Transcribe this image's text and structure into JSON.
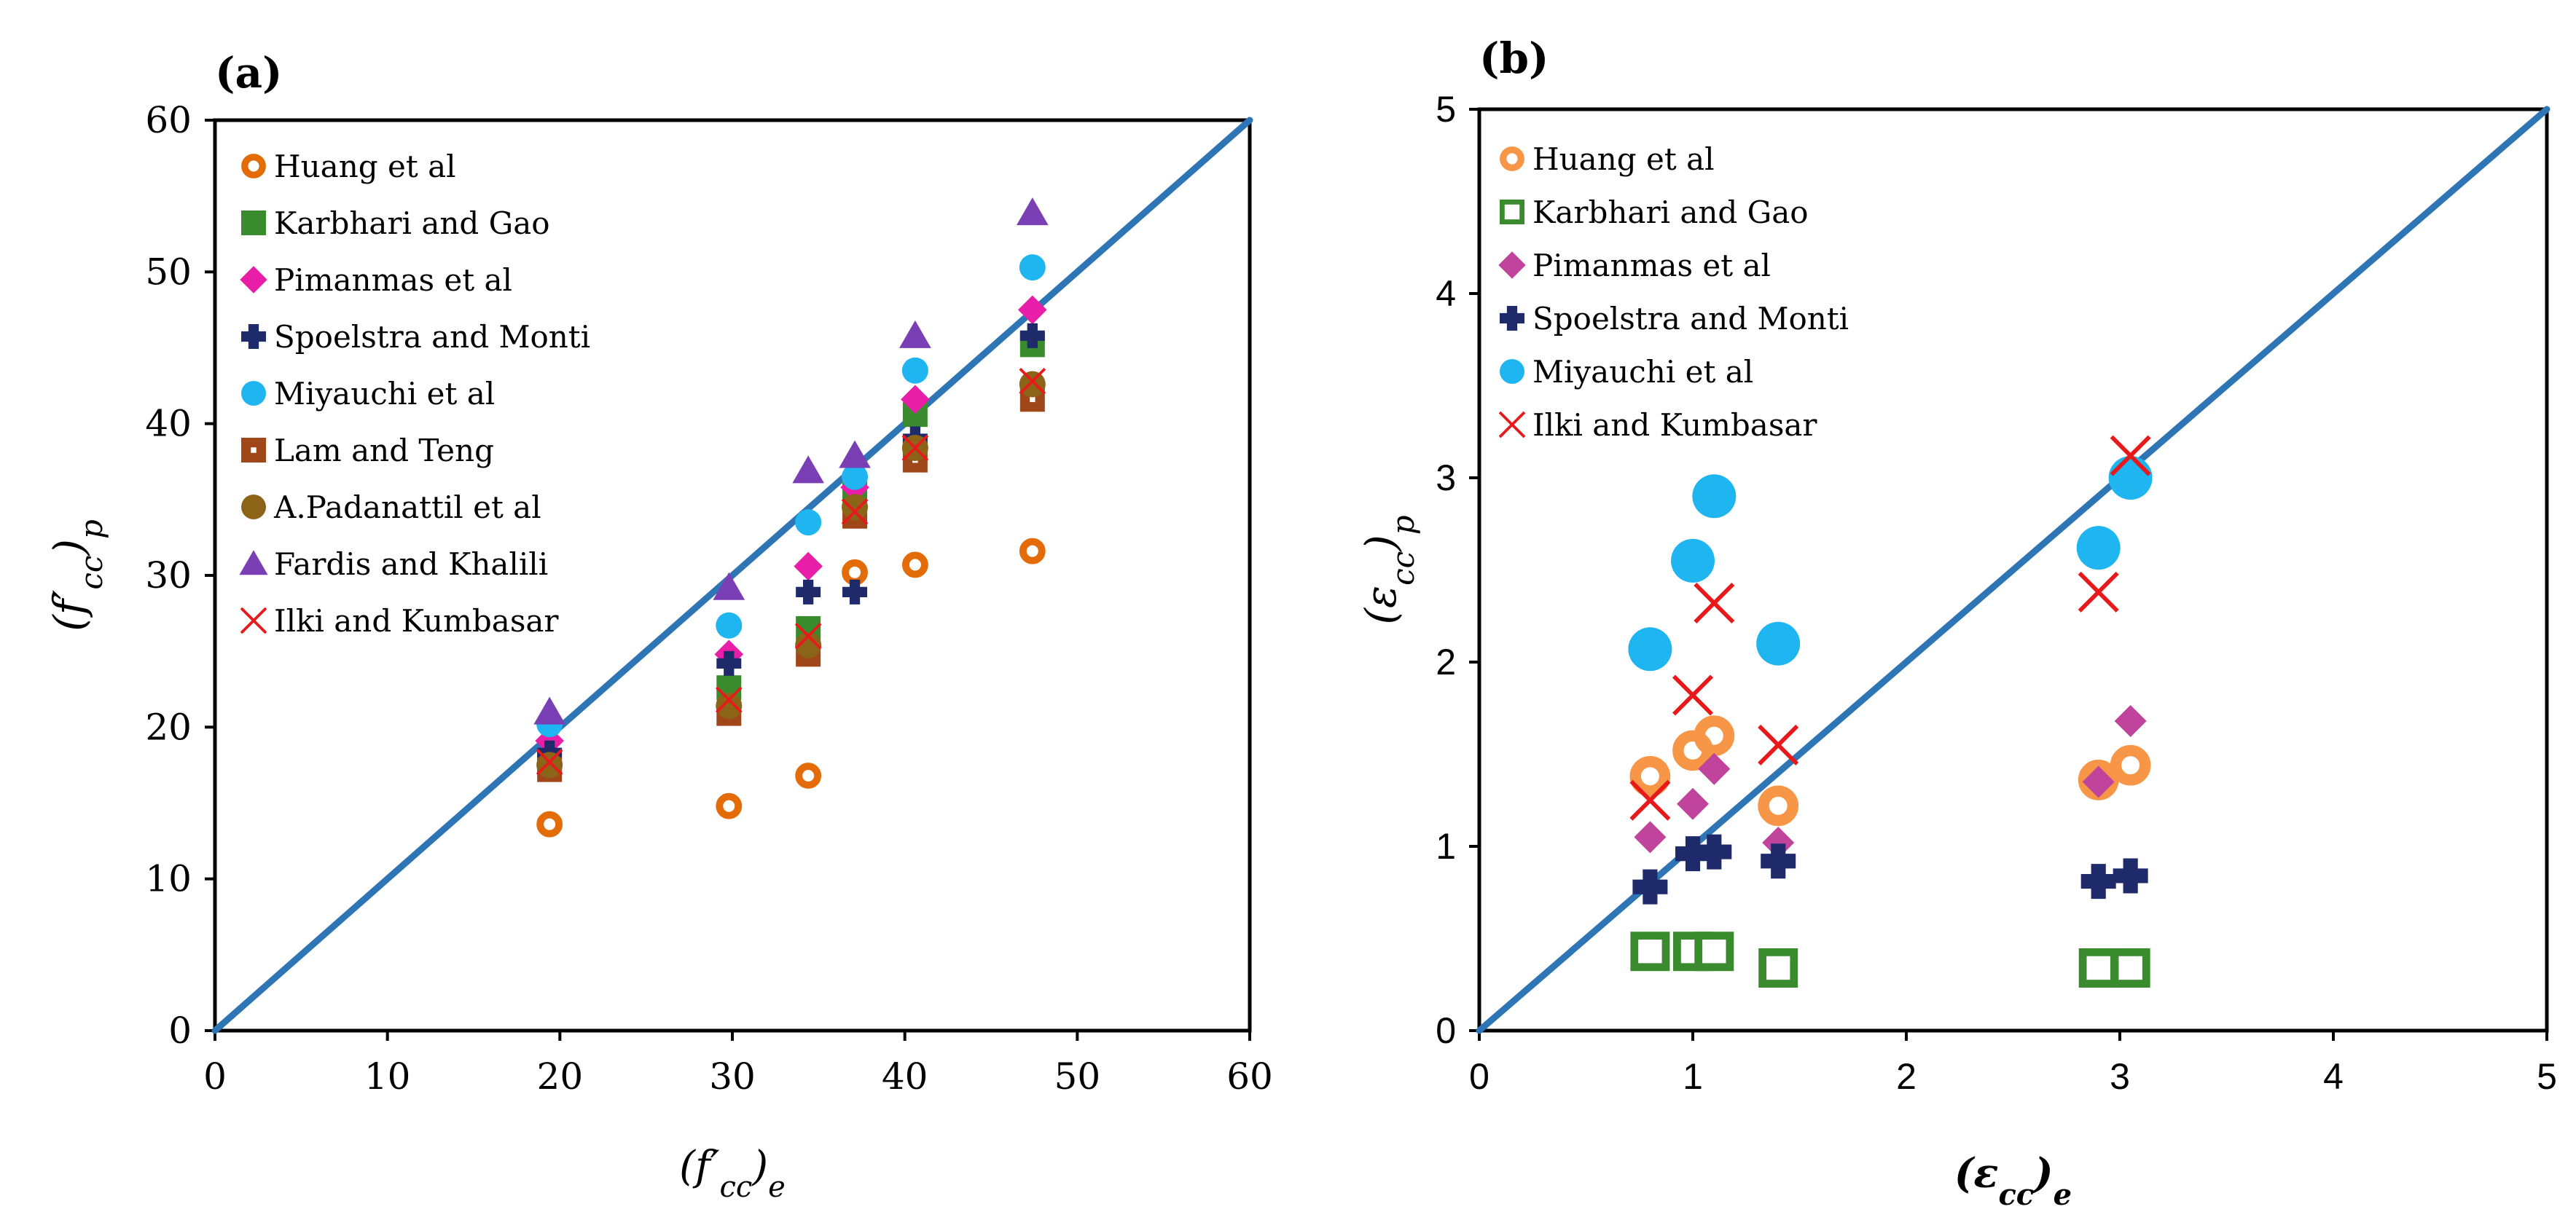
{
  "chart_data": [
    {
      "type": "scatter",
      "panel_label": "(a)",
      "x_axis": {
        "label_base": "(f′",
        "label_sub_inner": "cc",
        "label_close": ")",
        "label_sub_outer": "e"
      },
      "y_axis": {
        "label_base": "(f′",
        "label_sub_inner": "cc",
        "label_close": ")",
        "label_sub_outer": "p"
      },
      "xlim": [
        0,
        60
      ],
      "ylim": [
        0,
        60
      ],
      "xticks": [
        "0",
        "10",
        "20",
        "30",
        "40",
        "50",
        "60"
      ],
      "yticks": [
        "0",
        "10",
        "20",
        "30",
        "40",
        "50",
        "60"
      ],
      "reference_line": {
        "from": [
          0,
          0
        ],
        "to": [
          60,
          60
        ],
        "color": "#2E75B6"
      },
      "legend_position": "top-left inside",
      "series": [
        {
          "name": "Huang et al",
          "marker": "ring",
          "color": "#E36C09",
          "points": [
            [
              19.4,
              13.6
            ],
            [
              29.8,
              14.8
            ],
            [
              34.4,
              16.8
            ],
            [
              37.1,
              30.2
            ],
            [
              40.6,
              30.7
            ],
            [
              47.4,
              31.6
            ]
          ]
        },
        {
          "name": "Karbhari and Gao",
          "marker": "square",
          "color": "#3A8B2E",
          "points": [
            [
              19.4,
              17.8
            ],
            [
              29.8,
              22.6
            ],
            [
              34.4,
              26.5
            ],
            [
              37.1,
              35.5
            ],
            [
              40.6,
              40.6
            ],
            [
              47.4,
              45.2
            ]
          ]
        },
        {
          "name": "Pimanmas et al",
          "marker": "diamond",
          "color": "#E91EA8",
          "points": [
            [
              19.4,
              19.1
            ],
            [
              29.8,
              24.8
            ],
            [
              34.4,
              30.6
            ],
            [
              37.1,
              35.8
            ],
            [
              40.6,
              41.6
            ],
            [
              47.4,
              47.5
            ]
          ]
        },
        {
          "name": "Spoelstra and Monti",
          "marker": "plus",
          "color": "#1F2A6B",
          "points": [
            [
              19.4,
              18.3
            ],
            [
              29.8,
              24.2
            ],
            [
              34.4,
              28.9
            ],
            [
              37.1,
              28.9
            ],
            [
              40.6,
              39.0
            ],
            [
              47.4,
              45.8
            ]
          ]
        },
        {
          "name": "Miyauchi et al",
          "marker": "circle",
          "color": "#1FB5F0",
          "points": [
            [
              19.4,
              20.2
            ],
            [
              29.8,
              26.7
            ],
            [
              34.4,
              33.5
            ],
            [
              37.1,
              36.5
            ],
            [
              40.6,
              43.5
            ],
            [
              47.4,
              50.3
            ]
          ]
        },
        {
          "name": "Lam and Teng",
          "marker": "square-dot",
          "color": "#A0471A",
          "points": [
            [
              19.4,
              17.2
            ],
            [
              29.8,
              20.9
            ],
            [
              34.4,
              24.8
            ],
            [
              37.1,
              33.9
            ],
            [
              40.6,
              37.6
            ],
            [
              47.4,
              41.6
            ]
          ]
        },
        {
          "name": "A.Padanattil et al",
          "marker": "circle",
          "color": "#8C6418",
          "points": [
            [
              19.4,
              17.5
            ],
            [
              29.8,
              21.4
            ],
            [
              34.4,
              25.4
            ],
            [
              37.1,
              34.5
            ],
            [
              40.6,
              38.4
            ],
            [
              47.4,
              42.6
            ]
          ]
        },
        {
          "name": "Fardis and Khalili",
          "marker": "triangle",
          "color": "#7A3FB5",
          "points": [
            [
              19.4,
              21.0
            ],
            [
              29.8,
              29.2
            ],
            [
              34.4,
              36.9
            ],
            [
              37.1,
              37.9
            ],
            [
              40.6,
              45.8
            ],
            [
              47.4,
              53.9
            ]
          ]
        },
        {
          "name": "Ilki and Kumbasar",
          "marker": "x",
          "color": "#E8191A",
          "points": [
            [
              19.4,
              17.7
            ],
            [
              29.8,
              21.8
            ],
            [
              34.4,
              26.0
            ],
            [
              37.1,
              34.2
            ],
            [
              40.6,
              38.4
            ],
            [
              47.4,
              42.8
            ]
          ]
        }
      ]
    },
    {
      "type": "scatter",
      "panel_label": "(b)",
      "x_axis": {
        "label_base": "(ε",
        "label_sub_inner": "cc",
        "label_close": ")",
        "label_sub_outer": "e"
      },
      "y_axis": {
        "label_base": "(ε",
        "label_sub_inner": "cc",
        "label_close": ")",
        "label_sub_outer": "p"
      },
      "xlim": [
        0,
        5
      ],
      "ylim": [
        0,
        5
      ],
      "xticks": [
        "0",
        "1",
        "2",
        "3",
        "4",
        "5"
      ],
      "yticks": [
        "0",
        "1",
        "2",
        "3",
        "4",
        "5"
      ],
      "reference_line": {
        "from": [
          0,
          0
        ],
        "to": [
          5,
          5
        ],
        "color": "#2E75B6"
      },
      "legend_position": "top-left inside",
      "series": [
        {
          "name": "Huang et al",
          "marker": "ring",
          "color": "#F79646",
          "points": [
            [
              0.8,
              1.38
            ],
            [
              1.0,
              1.52
            ],
            [
              1.1,
              1.6
            ],
            [
              1.4,
              1.22
            ],
            [
              2.9,
              1.36
            ],
            [
              3.05,
              1.44
            ]
          ]
        },
        {
          "name": "Karbhari and Gao",
          "marker": "square-open",
          "color": "#3A8B2E",
          "points": [
            [
              0.8,
              0.43
            ],
            [
              1.0,
              0.43
            ],
            [
              1.1,
              0.43
            ],
            [
              1.4,
              0.34
            ],
            [
              2.9,
              0.34
            ],
            [
              3.05,
              0.34
            ]
          ]
        },
        {
          "name": "Pimanmas et al",
          "marker": "diamond",
          "color": "#C0449C",
          "points": [
            [
              0.8,
              1.05
            ],
            [
              1.0,
              1.23
            ],
            [
              1.1,
              1.42
            ],
            [
              1.4,
              1.02
            ],
            [
              2.9,
              1.35
            ],
            [
              3.05,
              1.68
            ]
          ]
        },
        {
          "name": "Spoelstra and Monti",
          "marker": "plus",
          "color": "#1F2A6B",
          "points": [
            [
              0.8,
              0.78
            ],
            [
              1.0,
              0.96
            ],
            [
              1.1,
              0.97
            ],
            [
              1.4,
              0.92
            ],
            [
              2.9,
              0.81
            ],
            [
              3.05,
              0.84
            ]
          ]
        },
        {
          "name": "Miyauchi et al",
          "marker": "circle",
          "color": "#1FB5F0",
          "points": [
            [
              0.8,
              2.07
            ],
            [
              1.0,
              2.55
            ],
            [
              1.1,
              2.9
            ],
            [
              1.4,
              2.1
            ],
            [
              2.9,
              2.62
            ],
            [
              3.05,
              3.0
            ]
          ]
        },
        {
          "name": "Ilki and Kumbasar",
          "marker": "x",
          "color": "#E8191A",
          "points": [
            [
              0.8,
              1.25
            ],
            [
              1.0,
              1.82
            ],
            [
              1.1,
              2.32
            ],
            [
              1.4,
              1.55
            ],
            [
              2.9,
              2.38
            ],
            [
              3.05,
              3.12
            ]
          ]
        }
      ]
    }
  ]
}
